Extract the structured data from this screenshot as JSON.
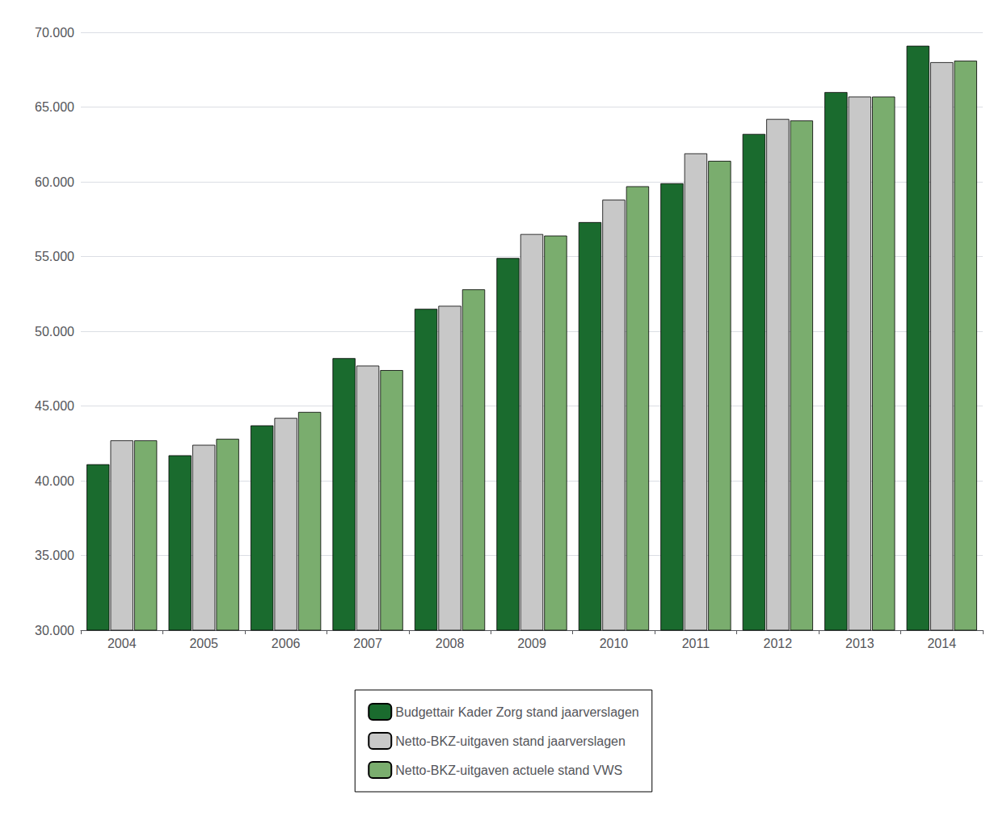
{
  "chart_data": {
    "type": "bar",
    "categories": [
      "2004",
      "2005",
      "2006",
      "2007",
      "2008",
      "2009",
      "2010",
      "2011",
      "2012",
      "2013",
      "2014"
    ],
    "series": [
      {
        "name": "Budgettair Kader Zorg stand jaarverslagen",
        "color": "#1a6b2e",
        "values": [
          41100,
          41700,
          43700,
          48200,
          51500,
          54900,
          57300,
          59900,
          63200,
          66000,
          69100
        ]
      },
      {
        "name": "Netto-BKZ-uitgaven stand jaarverslagen",
        "color": "#c8c8c8",
        "values": [
          42700,
          42400,
          44200,
          47700,
          51700,
          56500,
          58800,
          61900,
          64200,
          65700,
          68000
        ]
      },
      {
        "name": "Netto-BKZ-uitgaven actuele stand VWS",
        "color": "#7aad6e",
        "values": [
          42700,
          42800,
          44600,
          47400,
          52800,
          56400,
          59700,
          61400,
          64100,
          65700,
          68100
        ]
      }
    ],
    "ylim": [
      30000,
      70000
    ],
    "yticks": [
      {
        "value": 30000,
        "label": "30.000"
      },
      {
        "value": 35000,
        "label": "35.000"
      },
      {
        "value": 40000,
        "label": "40.000"
      },
      {
        "value": 45000,
        "label": "45.000"
      },
      {
        "value": 50000,
        "label": "50.000"
      },
      {
        "value": 55000,
        "label": "55.000"
      },
      {
        "value": 60000,
        "label": "60.000"
      },
      {
        "value": 65000,
        "label": "65.000"
      },
      {
        "value": 70000,
        "label": "70.000"
      }
    ],
    "grid": true,
    "legend": "bottom"
  }
}
